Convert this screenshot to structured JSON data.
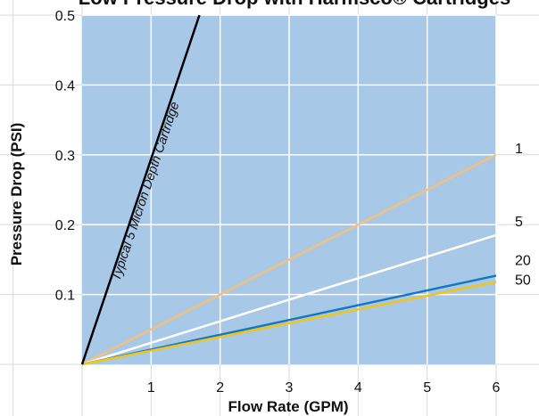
{
  "chart_data": {
    "type": "line",
    "title": "Low Pressure Drop with Harmsco® Cartridges",
    "xlabel": "Flow Rate (GPM)",
    "ylabel": "Pressure Drop (PSI)",
    "xlim": [
      0,
      6
    ],
    "ylim": [
      0,
      0.5
    ],
    "xticks": [
      1,
      2,
      3,
      4,
      5,
      6
    ],
    "yticks": [
      0.1,
      0.2,
      0.3,
      0.4,
      0.5
    ],
    "grid": true,
    "plot_background": "#a8c8e8",
    "series": [
      {
        "name": "1",
        "color": "#f5c07a",
        "x": [
          0,
          6
        ],
        "y": [
          0,
          0.3
        ]
      },
      {
        "name": "5",
        "color": "#ffffff",
        "x": [
          0,
          6
        ],
        "y": [
          0,
          0.185
        ]
      },
      {
        "name": "20",
        "color": "#1478c0",
        "x": [
          0,
          6
        ],
        "y": [
          0,
          0.127
        ]
      },
      {
        "name": "50",
        "color": "#f2c414",
        "x": [
          0,
          6
        ],
        "y": [
          0,
          0.118
        ]
      }
    ],
    "reference_line": {
      "label": "Typical 5 Micron Depth Cartridge",
      "color": "#000000",
      "x": [
        0,
        1.7
      ],
      "y": [
        0,
        0.5
      ]
    }
  }
}
